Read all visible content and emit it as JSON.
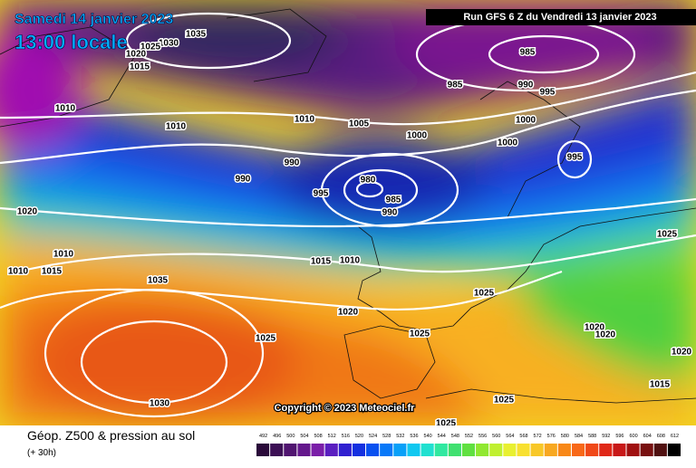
{
  "header": {
    "date": "Samedi 14 janvier 2023",
    "time": "13:00 locale",
    "run": "Run GFS 6 Z du Vendredi 13 janvier 2023"
  },
  "copyright": "Copyright © 2023 Meteociel.fr",
  "footer": {
    "title": "Géop. Z500 & pression au sol",
    "lead": "(+ 30h)"
  },
  "isobar_labels": [
    1035,
    1030,
    1025,
    1020,
    1015,
    1010,
    1010,
    1010,
    1005,
    1000,
    985,
    985,
    990,
    995,
    1000,
    1000,
    995,
    990,
    990,
    995,
    980,
    985,
    990,
    1020,
    1010,
    1010,
    1015,
    1035,
    1015,
    1010,
    1025,
    1020,
    1025,
    1025,
    1025,
    1020,
    1020,
    1020,
    1015,
    1030,
    1025,
    1025
  ],
  "scale": {
    "labels": [
      492,
      496,
      500,
      504,
      508,
      512,
      516,
      520,
      524,
      528,
      532,
      536,
      540,
      544,
      548,
      552,
      556,
      560,
      564,
      568,
      572,
      576,
      580,
      584,
      588,
      592,
      596,
      600,
      604,
      608,
      612
    ],
    "colors": [
      "#2a0a3a",
      "#3c0f55",
      "#501470",
      "#64188c",
      "#7a1ea8",
      "#5a1ec0",
      "#3020d0",
      "#1430e0",
      "#0850f0",
      "#0878f8",
      "#08a0f8",
      "#10c8f0",
      "#20e0d0",
      "#30e8a0",
      "#40e070",
      "#60e040",
      "#90e830",
      "#c0f030",
      "#e8f030",
      "#f8e030",
      "#f8c828",
      "#f8a820",
      "#f88818",
      "#f86818",
      "#f04818",
      "#e02818",
      "#c81818",
      "#a01010",
      "#781010",
      "#501010",
      "#000000"
    ]
  }
}
